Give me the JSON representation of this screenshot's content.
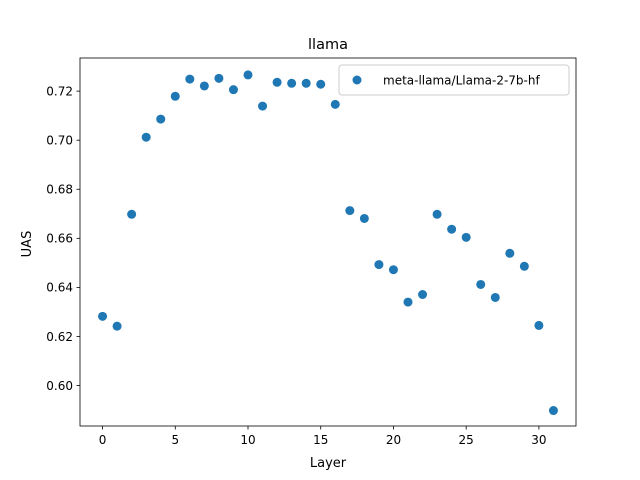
{
  "chart_data": {
    "type": "scatter",
    "title": "llama",
    "xlabel": "Layer",
    "ylabel": "UAS",
    "xlim": [
      -1.55,
      32.55
    ],
    "ylim": [
      0.5835,
      0.7335
    ],
    "xticks": [
      0,
      5,
      10,
      15,
      20,
      25,
      30
    ],
    "xtick_labels": [
      "0",
      "5",
      "10",
      "15",
      "20",
      "25",
      "30"
    ],
    "yticks": [
      0.6,
      0.62,
      0.64,
      0.66,
      0.68,
      0.7,
      0.72
    ],
    "ytick_labels": [
      "0.60",
      "0.62",
      "0.64",
      "0.66",
      "0.68",
      "0.70",
      "0.72"
    ],
    "grid": false,
    "legend_position": "top-right",
    "series": [
      {
        "name": "meta-llama/Llama-2-7b-hf",
        "color": "#1f77b4",
        "marker": "circle",
        "x": [
          0,
          1,
          2,
          3,
          4,
          5,
          6,
          7,
          8,
          9,
          10,
          11,
          12,
          13,
          14,
          15,
          16,
          17,
          18,
          19,
          20,
          21,
          22,
          23,
          24,
          25,
          26,
          27,
          28,
          29,
          30,
          31
        ],
        "y": [
          0.6282,
          0.6242,
          0.6698,
          0.7012,
          0.7086,
          0.7179,
          0.7249,
          0.7221,
          0.7252,
          0.7206,
          0.7266,
          0.7139,
          0.7236,
          0.7232,
          0.7232,
          0.7228,
          0.7146,
          0.6713,
          0.6681,
          0.6493,
          0.6472,
          0.634,
          0.6371,
          0.6698,
          0.6637,
          0.6604,
          0.6412,
          0.6359,
          0.6539,
          0.6486,
          0.6245,
          0.5898
        ]
      }
    ]
  }
}
